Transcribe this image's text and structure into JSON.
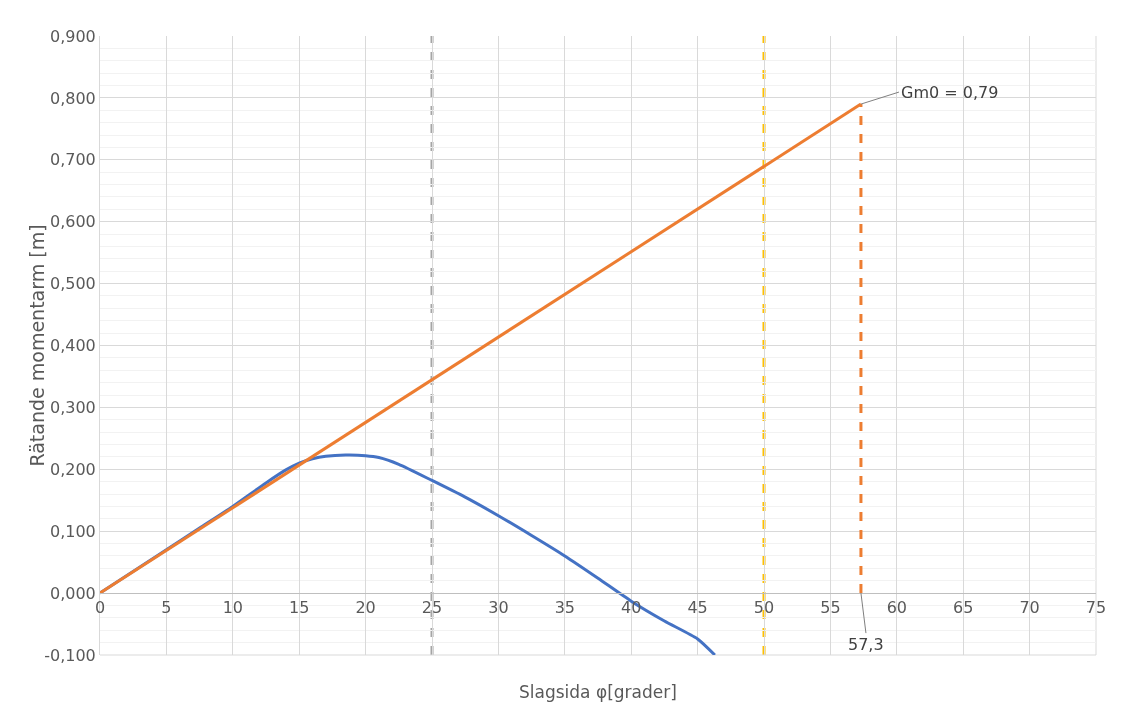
{
  "chart_data": {
    "type": "line",
    "xlabel": "Slagsida φ[grader]",
    "ylabel": "Rätande momentarm [m]",
    "series": [
      {
        "color": "#4472c4",
        "x": [
          0,
          2.5,
          5,
          7.5,
          10,
          12.5,
          14,
          15,
          16,
          17,
          18.5,
          20,
          21,
          22.5,
          25,
          27.5,
          30,
          32.5,
          35,
          37.5,
          40,
          42.5,
          45,
          46.3
        ],
        "values": [
          0,
          null,
          0.07,
          0.105,
          0.14,
          0.178,
          0.199,
          0.21,
          0.217,
          0.221,
          0.223,
          0.222,
          0.219,
          0.208,
          0.182,
          0.155,
          0.125,
          0.093,
          0.06,
          0.024,
          -0.013,
          -0.045,
          -0.074,
          -0.1
        ]
      },
      {
        "color": "#ed7d31",
        "x": [
          0,
          57.3
        ],
        "values": [
          0,
          0.79
        ]
      },
      {
        "color": "#ed7d31",
        "x": [
          57.3,
          57.3
        ],
        "values": [
          0,
          0.79
        ],
        "line_style": "dashed"
      }
    ],
    "ref_lines": [
      {
        "axis": "x",
        "value": 25,
        "color": "#a5a5a5",
        "line_style": "dashed"
      },
      {
        "axis": "x",
        "value": 50,
        "color": "#ffc000",
        "line_style": "dashed"
      }
    ],
    "annotations": [
      {
        "text": "Gm0 = 0,79",
        "x": 57.3,
        "y": 0.79
      },
      {
        "text": "57,3",
        "x": 57.3,
        "y": 0
      }
    ],
    "xlim": [
      0,
      75
    ],
    "xticks": [
      0,
      5,
      10,
      15,
      20,
      25,
      30,
      35,
      40,
      45,
      50,
      55,
      60,
      65,
      70,
      75
    ],
    "ylim": [
      -0.1,
      0.9
    ],
    "yticks": [
      {
        "value": -0.1,
        "label": "-0,100"
      },
      {
        "value": 0,
        "label": "0,000"
      },
      {
        "value": 0.1,
        "label": "0,100"
      },
      {
        "value": 0.2,
        "label": "0,200"
      },
      {
        "value": 0.3,
        "label": "0,300"
      },
      {
        "value": 0.4,
        "label": "0,400"
      },
      {
        "value": 0.5,
        "label": "0,500"
      },
      {
        "value": 0.6,
        "label": "0,600"
      },
      {
        "value": 0.7,
        "label": "0,700"
      },
      {
        "value": 0.8,
        "label": "0,800"
      },
      {
        "value": 0.9,
        "label": "0,900"
      }
    ],
    "grid": true,
    "marker": "none",
    "line_style": "solid"
  }
}
